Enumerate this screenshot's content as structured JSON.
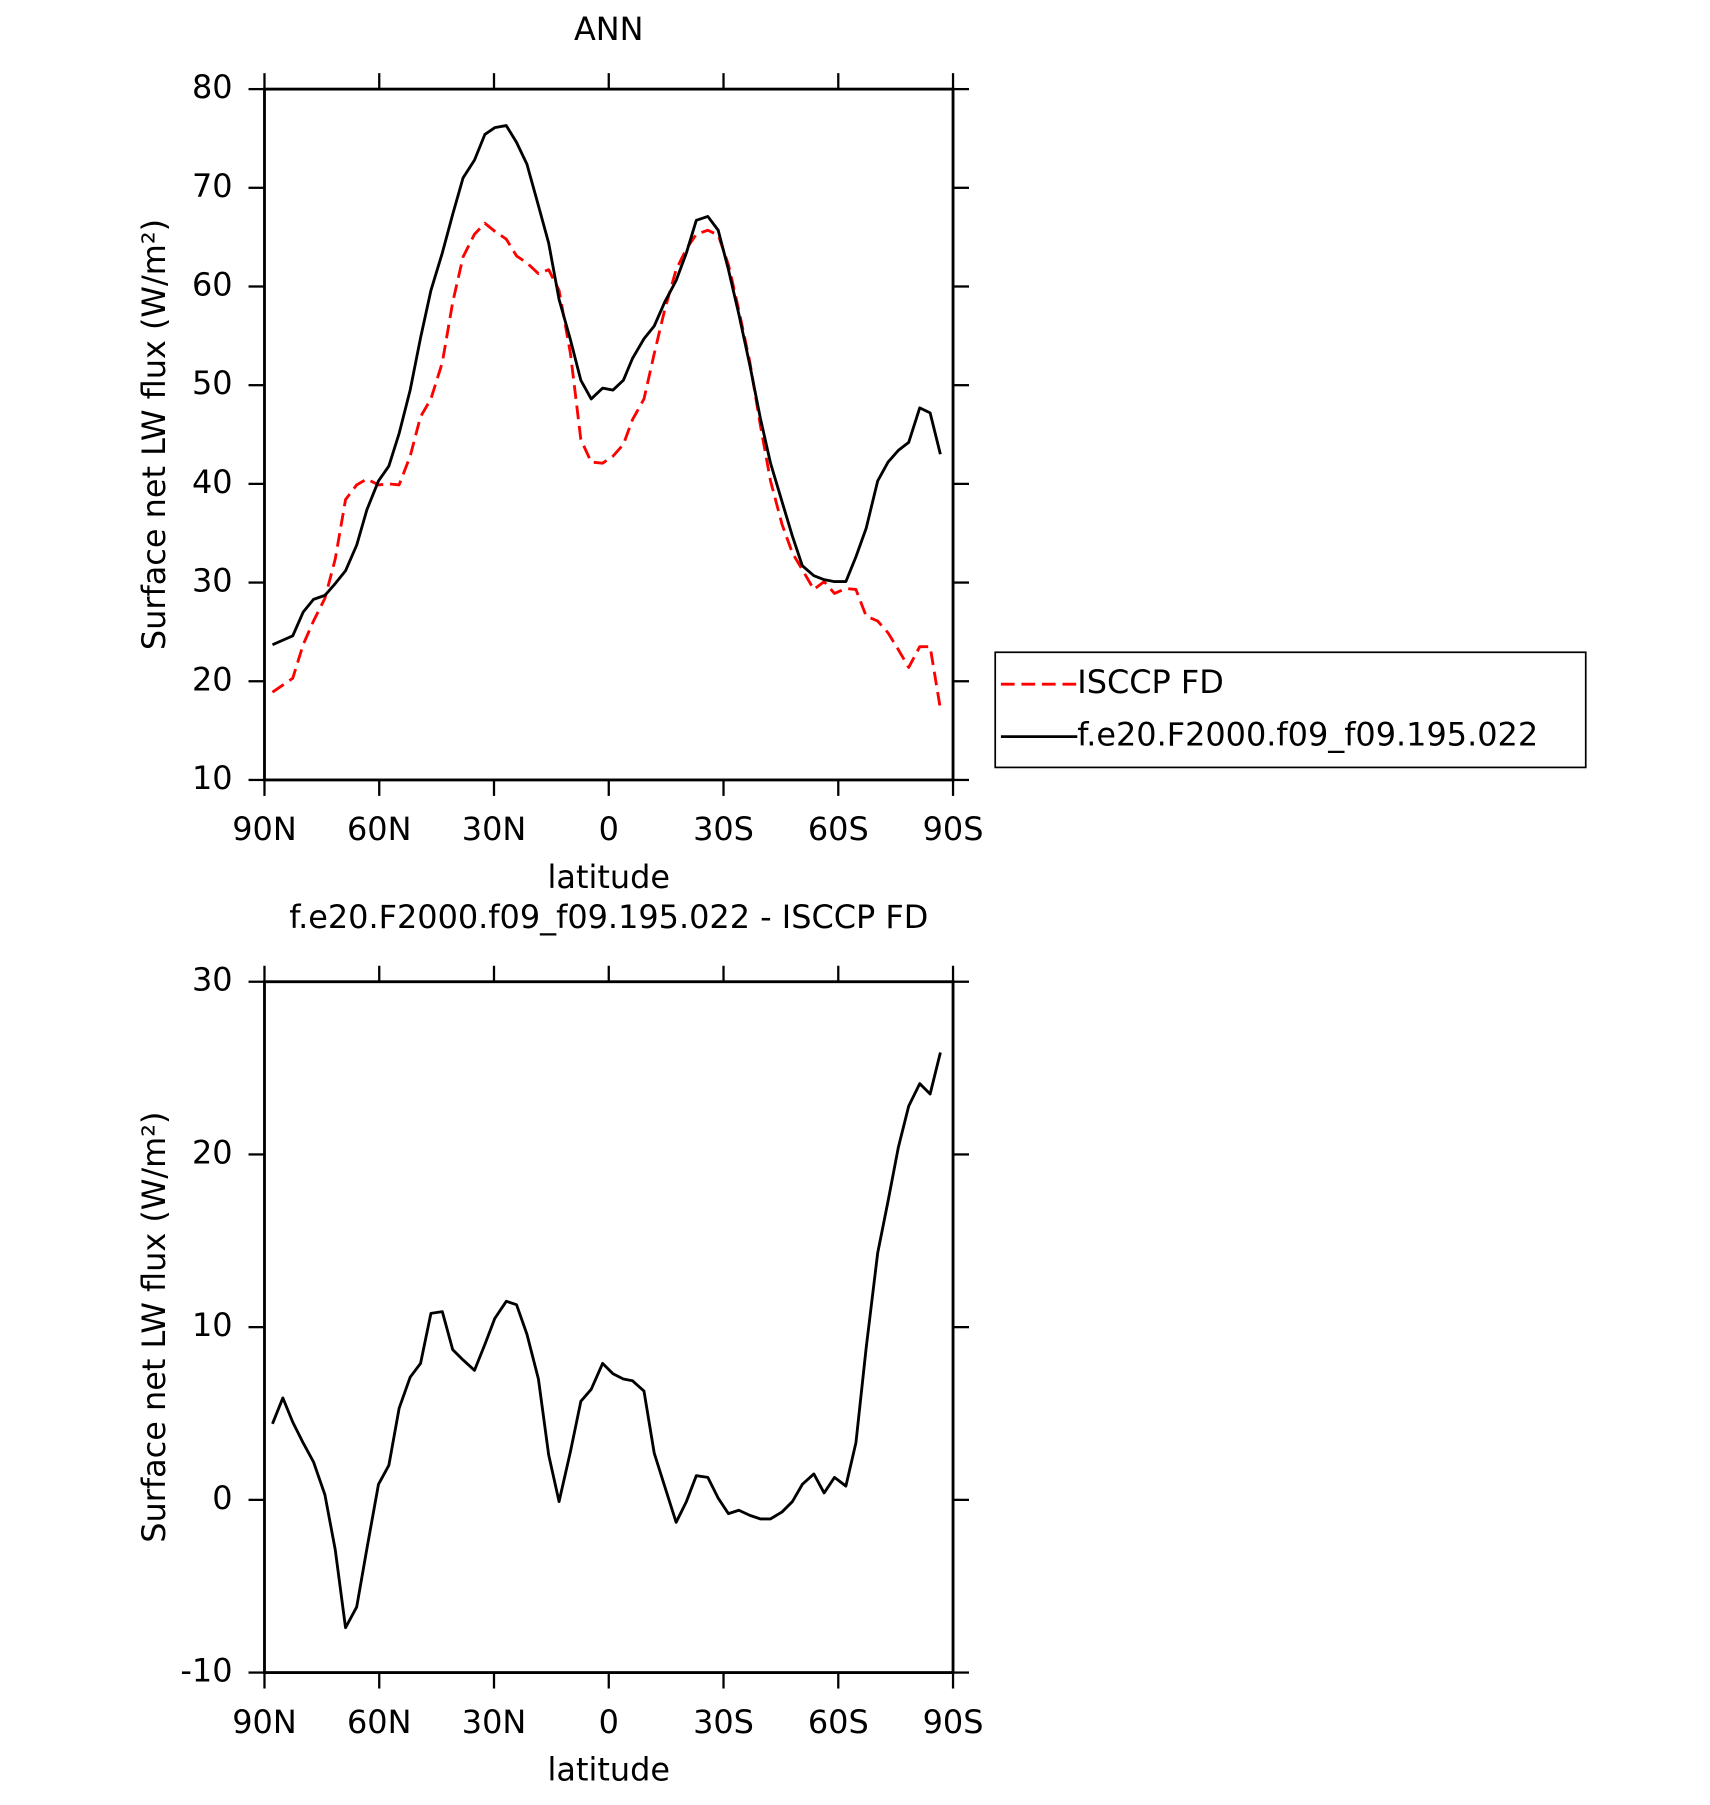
{
  "chart_data": [
    {
      "type": "line",
      "title": "ANN",
      "xlabel": "latitude",
      "ylabel": "Surface net LW flux (W/m²)",
      "x": [
        87.9,
        82.6,
        79.9,
        77.2,
        74.2,
        71.5,
        68.8,
        65.9,
        63.2,
        60.2,
        57.5,
        54.8,
        51.9,
        49.2,
        46.5,
        43.5,
        40.8,
        38.1,
        35.1,
        32.4,
        29.8,
        26.8,
        24.1,
        21.4,
        18.4,
        15.7,
        13.0,
        10.0,
        7.3,
        4.6,
        1.6,
        -1.1,
        -3.8,
        -6.2,
        -9.2,
        -11.9,
        -14.6,
        -17.6,
        -20.3,
        -22.9,
        -25.9,
        -28.6,
        -31.3,
        -34.0,
        -36.9,
        -39.6,
        -42.3,
        -45.3,
        -48.0,
        -50.6,
        -53.6,
        -56.3,
        -59.0,
        -62.0,
        -64.6,
        -67.3,
        -70.3,
        -73.0,
        -75.7,
        -78.4,
        -81.3,
        -84.0,
        -86.7
      ],
      "series": [
        {
          "name": "ISCCP FD",
          "color": "#ff0000",
          "dash": true,
          "values": [
            18.9,
            20.3,
            23.7,
            26.1,
            28.4,
            32.4,
            38.4,
            39.9,
            40.5,
            39.9,
            40.0,
            39.9,
            42.8,
            46.8,
            48.6,
            52.3,
            58.4,
            63.0,
            65.3,
            66.4,
            65.6,
            64.8,
            63.1,
            62.4,
            61.3,
            61.7,
            59.6,
            53.2,
            44.5,
            42.2,
            42.1,
            42.8,
            44.0,
            46.5,
            48.6,
            53.2,
            57.6,
            61.7,
            63.8,
            65.3,
            65.7,
            65.2,
            62.2,
            57.6,
            52.3,
            46.0,
            40.3,
            35.9,
            33.0,
            31.3,
            29.3,
            30.1,
            28.9,
            29.4,
            29.3,
            26.6,
            26.1,
            24.9,
            23.2,
            21.4,
            23.5,
            23.5,
            17.2
          ]
        },
        {
          "name": "f.e20.F2000.f09_f09.195.022",
          "color": "#000000",
          "dash": false,
          "values": [
            23.7,
            24.6,
            27.0,
            28.3,
            28.7,
            29.9,
            31.2,
            33.8,
            37.4,
            40.3,
            41.8,
            45.1,
            49.5,
            54.8,
            59.6,
            63.4,
            67.3,
            71.0,
            72.8,
            75.4,
            76.1,
            76.3,
            74.6,
            72.4,
            68.2,
            64.4,
            58.7,
            54.6,
            50.5,
            48.6,
            49.7,
            49.5,
            50.5,
            52.7,
            54.7,
            56.0,
            58.4,
            60.6,
            63.4,
            66.7,
            67.1,
            65.7,
            61.7,
            57.2,
            52.0,
            46.7,
            42.1,
            38.2,
            34.7,
            31.7,
            30.7,
            30.3,
            30.1,
            30.1,
            32.6,
            35.5,
            40.3,
            42.2,
            43.4,
            44.2,
            47.7,
            47.2,
            43.0
          ]
        }
      ],
      "xlim": [
        90,
        -90
      ],
      "xticks": [
        {
          "value": 90,
          "label": "90N"
        },
        {
          "value": 60,
          "label": "60N"
        },
        {
          "value": 30,
          "label": "30N"
        },
        0,
        {
          "value": -30,
          "label": "30S"
        },
        {
          "value": -60,
          "label": "60S"
        },
        {
          "value": -90,
          "label": "90S"
        }
      ],
      "ylim": [
        10,
        80
      ],
      "yticks": [
        10,
        20,
        30,
        40,
        50,
        60,
        70,
        80
      ],
      "legend": "right"
    },
    {
      "type": "line",
      "title": "f.e20.F2000.f09_f09.195.022 - ISCCP FD",
      "xlabel": "latitude",
      "ylabel": "Surface net LW flux (W/m²)",
      "x": [
        87.9,
        85.2,
        82.6,
        79.9,
        77.2,
        74.2,
        71.5,
        68.8,
        65.9,
        63.2,
        60.2,
        57.5,
        54.8,
        51.9,
        49.2,
        46.5,
        43.5,
        40.8,
        38.1,
        35.1,
        32.4,
        29.8,
        26.8,
        24.1,
        21.4,
        18.4,
        15.7,
        13.0,
        10.0,
        7.3,
        4.6,
        1.6,
        -1.1,
        -3.8,
        -6.2,
        -9.2,
        -11.9,
        -14.6,
        -17.6,
        -20.3,
        -22.9,
        -25.9,
        -28.6,
        -31.3,
        -34.0,
        -36.9,
        -39.6,
        -42.3,
        -45.3,
        -48.0,
        -50.6,
        -53.6,
        -56.3,
        -59.0,
        -62.0,
        -64.6,
        -67.3,
        -70.3,
        -73.0,
        -75.7,
        -78.4,
        -81.3,
        -84.0,
        -86.7
      ],
      "series": [
        {
          "color": "#000000",
          "dash": false,
          "values": [
            4.4,
            5.9,
            4.5,
            3.3,
            2.2,
            0.3,
            -2.9,
            -7.4,
            -6.2,
            -2.8,
            0.9,
            2.0,
            5.3,
            7.1,
            7.9,
            10.8,
            10.9,
            8.7,
            8.1,
            7.5,
            9.0,
            10.5,
            11.5,
            11.3,
            9.6,
            7.0,
            2.6,
            -0.1,
            2.8,
            5.7,
            6.4,
            7.9,
            7.3,
            7.0,
            6.9,
            6.3,
            2.7,
            0.8,
            -1.3,
            -0.1,
            1.4,
            1.3,
            0.1,
            -0.8,
            -0.6,
            -0.9,
            -1.1,
            -1.1,
            -0.7,
            -0.1,
            0.9,
            1.5,
            0.4,
            1.3,
            0.8,
            3.3,
            8.8,
            14.3,
            17.3,
            20.4,
            22.8,
            24.1,
            23.5,
            25.9
          ]
        }
      ],
      "xlim": [
        90,
        -90
      ],
      "xticks": [
        {
          "value": 90,
          "label": "90N"
        },
        {
          "value": 60,
          "label": "60N"
        },
        {
          "value": 30,
          "label": "30N"
        },
        0,
        {
          "value": -30,
          "label": "30S"
        },
        {
          "value": -60,
          "label": "60S"
        },
        {
          "value": -90,
          "label": "90S"
        }
      ],
      "ylim": [
        -10,
        30
      ],
      "yticks": [
        -10,
        0,
        10,
        20,
        30
      ]
    }
  ]
}
